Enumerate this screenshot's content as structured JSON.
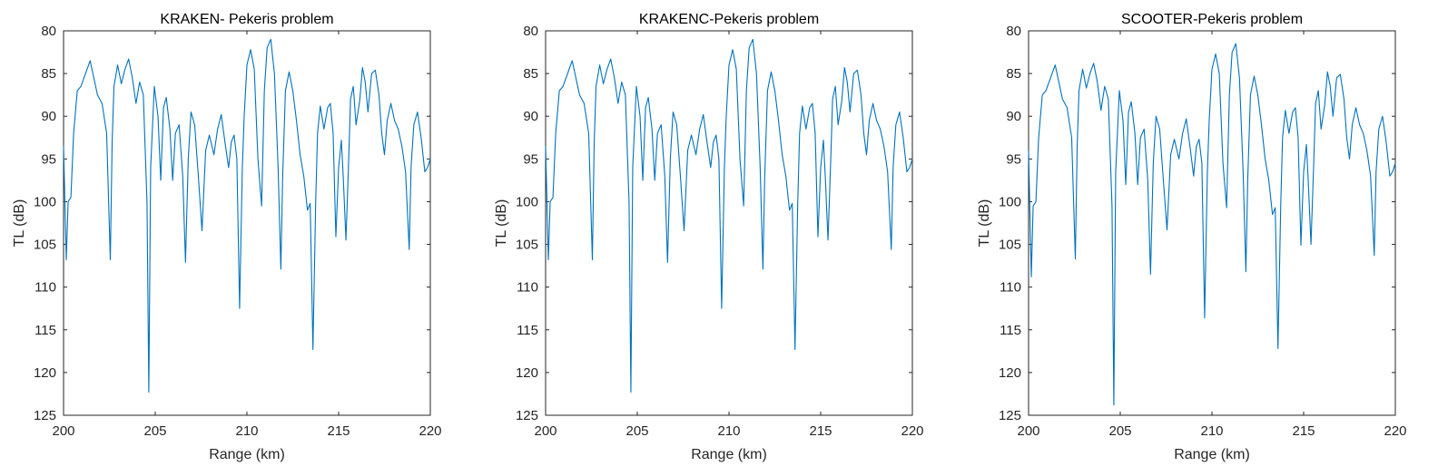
{
  "figure": {
    "line_color": "#0072BD",
    "axis_color": "#262626"
  },
  "chart_data": [
    {
      "type": "line",
      "title": "KRAKEN- Pekeris problem",
      "xlabel": "Range (km)",
      "ylabel": "TL (dB)",
      "xlim": [
        200,
        220
      ],
      "ylim": [
        80,
        125
      ],
      "y_reversed": true,
      "xticks": [
        200,
        205,
        210,
        215,
        220
      ],
      "yticks": [
        80,
        85,
        90,
        95,
        100,
        105,
        110,
        115,
        120,
        125
      ],
      "series": [
        {
          "name": "TL",
          "x": [
            200.0,
            200.15,
            200.25,
            200.4,
            200.55,
            200.75,
            200.95,
            201.2,
            201.45,
            201.65,
            201.85,
            202.1,
            202.35,
            202.55,
            202.65,
            202.75,
            202.95,
            203.15,
            203.35,
            203.55,
            203.75,
            203.95,
            204.15,
            204.35,
            204.55,
            204.65,
            204.75,
            204.95,
            205.15,
            205.3,
            205.45,
            205.6,
            205.8,
            205.95,
            206.1,
            206.3,
            206.5,
            206.65,
            206.8,
            206.95,
            207.15,
            207.35,
            207.55,
            207.75,
            207.95,
            208.2,
            208.4,
            208.6,
            208.8,
            209.0,
            209.15,
            209.3,
            209.45,
            209.6,
            209.75,
            209.85,
            210.0,
            210.2,
            210.4,
            210.6,
            210.8,
            210.95,
            211.1,
            211.3,
            211.5,
            211.7,
            211.85,
            211.95,
            212.1,
            212.3,
            212.5,
            212.7,
            212.9,
            213.1,
            213.3,
            213.45,
            213.6,
            213.75,
            213.85,
            214.0,
            214.2,
            214.4,
            214.55,
            214.7,
            214.85,
            215.0,
            215.15,
            215.25,
            215.4,
            215.55,
            215.65,
            215.8,
            215.95,
            216.15,
            216.3,
            216.45,
            216.6,
            216.8,
            217.0,
            217.2,
            217.35,
            217.5,
            217.65,
            217.85,
            218.05,
            218.25,
            218.45,
            218.65,
            218.85,
            218.95,
            219.1,
            219.3,
            219.5,
            219.7,
            219.85,
            220.0
          ],
          "values": [
            93.5,
            106.8,
            100.0,
            99.5,
            92.0,
            87.0,
            86.5,
            85.0,
            83.5,
            85.5,
            87.5,
            88.5,
            92.0,
            106.8,
            93.0,
            86.5,
            84.0,
            86.2,
            84.5,
            83.3,
            85.5,
            88.5,
            86.0,
            87.5,
            100.0,
            122.3,
            96.0,
            86.5,
            90.0,
            97.5,
            89.0,
            87.8,
            91.5,
            97.5,
            92.0,
            91.0,
            97.0,
            107.1,
            95.0,
            89.5,
            91.0,
            97.0,
            103.4,
            94.0,
            92.2,
            94.5,
            91.5,
            89.8,
            93.0,
            96.0,
            93.0,
            92.2,
            95.0,
            112.5,
            96.0,
            90.0,
            84.0,
            82.2,
            84.5,
            95.0,
            100.5,
            87.0,
            82.0,
            81.0,
            85.0,
            96.0,
            107.9,
            97.0,
            87.0,
            84.8,
            87.0,
            90.5,
            94.5,
            97.0,
            101.0,
            100.2,
            117.3,
            100.0,
            92.0,
            88.8,
            91.5,
            89.0,
            88.5,
            92.0,
            104.1,
            96.0,
            92.8,
            97.0,
            104.5,
            95.0,
            88.0,
            86.5,
            91.0,
            88.2,
            84.3,
            86.0,
            89.5,
            85.0,
            84.6,
            87.5,
            92.0,
            94.5,
            90.5,
            88.5,
            90.5,
            91.5,
            93.5,
            96.5,
            105.6,
            96.0,
            91.0,
            89.5,
            92.5,
            96.5,
            96.0,
            95.0
          ]
        }
      ]
    },
    {
      "type": "line",
      "title": "KRAKENC-Pekeris problem",
      "xlabel": "Range (km)",
      "ylabel": "TL (dB)",
      "xlim": [
        200,
        220
      ],
      "ylim": [
        80,
        125
      ],
      "y_reversed": true,
      "xticks": [
        200,
        205,
        210,
        215,
        220
      ],
      "yticks": [
        80,
        85,
        90,
        95,
        100,
        105,
        110,
        115,
        120,
        125
      ],
      "series": [
        {
          "name": "TL",
          "x": [
            200.0,
            200.15,
            200.25,
            200.4,
            200.55,
            200.75,
            200.95,
            201.2,
            201.45,
            201.65,
            201.85,
            202.1,
            202.35,
            202.55,
            202.65,
            202.75,
            202.95,
            203.15,
            203.35,
            203.55,
            203.75,
            203.95,
            204.15,
            204.35,
            204.55,
            204.65,
            204.75,
            204.95,
            205.15,
            205.3,
            205.45,
            205.6,
            205.8,
            205.95,
            206.1,
            206.3,
            206.5,
            206.65,
            206.8,
            206.95,
            207.15,
            207.35,
            207.55,
            207.75,
            207.95,
            208.2,
            208.4,
            208.6,
            208.8,
            209.0,
            209.15,
            209.3,
            209.45,
            209.6,
            209.75,
            209.85,
            210.0,
            210.2,
            210.4,
            210.6,
            210.8,
            210.95,
            211.1,
            211.3,
            211.5,
            211.7,
            211.85,
            211.95,
            212.1,
            212.3,
            212.5,
            212.7,
            212.9,
            213.1,
            213.3,
            213.45,
            213.6,
            213.75,
            213.85,
            214.0,
            214.2,
            214.4,
            214.55,
            214.7,
            214.85,
            215.0,
            215.15,
            215.25,
            215.4,
            215.55,
            215.65,
            215.8,
            215.95,
            216.15,
            216.3,
            216.45,
            216.6,
            216.8,
            217.0,
            217.2,
            217.35,
            217.5,
            217.65,
            217.85,
            218.05,
            218.25,
            218.45,
            218.65,
            218.85,
            218.95,
            219.1,
            219.3,
            219.5,
            219.7,
            219.85,
            220.0
          ],
          "values": [
            93.5,
            106.8,
            100.0,
            99.5,
            92.0,
            87.0,
            86.5,
            85.0,
            83.5,
            85.5,
            87.5,
            88.5,
            92.0,
            106.8,
            93.0,
            86.5,
            84.0,
            86.2,
            84.5,
            83.3,
            85.5,
            88.5,
            86.0,
            87.5,
            100.0,
            122.3,
            96.0,
            86.5,
            90.0,
            97.5,
            89.0,
            87.8,
            91.5,
            97.5,
            92.0,
            91.0,
            97.0,
            107.1,
            95.0,
            89.5,
            91.0,
            97.0,
            103.4,
            94.0,
            92.2,
            94.5,
            91.5,
            89.8,
            93.0,
            96.0,
            93.0,
            92.2,
            95.0,
            112.5,
            96.0,
            90.0,
            84.0,
            82.2,
            84.5,
            95.0,
            100.5,
            87.0,
            82.0,
            81.0,
            85.0,
            96.0,
            107.9,
            97.0,
            87.0,
            84.8,
            87.0,
            90.5,
            94.5,
            97.0,
            101.0,
            100.2,
            117.3,
            100.0,
            92.0,
            88.8,
            91.5,
            89.0,
            88.5,
            92.0,
            104.1,
            96.0,
            92.8,
            97.0,
            104.5,
            95.0,
            88.0,
            86.5,
            91.0,
            88.2,
            84.3,
            86.0,
            89.5,
            85.0,
            84.6,
            87.5,
            92.0,
            94.5,
            90.5,
            88.5,
            90.5,
            91.5,
            93.5,
            96.5,
            105.6,
            96.0,
            91.0,
            89.5,
            92.5,
            96.5,
            96.0,
            95.0
          ]
        }
      ]
    },
    {
      "type": "line",
      "title": "SCOOTER-Pekeris problem",
      "xlabel": "Range (km)",
      "ylabel": "TL (dB)",
      "xlim": [
        200,
        220
      ],
      "ylim": [
        80,
        125
      ],
      "y_reversed": true,
      "xticks": [
        200,
        205,
        210,
        215,
        220
      ],
      "yticks": [
        80,
        85,
        90,
        95,
        100,
        105,
        110,
        115,
        120,
        125
      ],
      "series": [
        {
          "name": "TL",
          "x": [
            200.0,
            200.15,
            200.25,
            200.4,
            200.55,
            200.75,
            200.95,
            201.2,
            201.45,
            201.65,
            201.85,
            202.1,
            202.35,
            202.55,
            202.65,
            202.75,
            202.95,
            203.15,
            203.35,
            203.55,
            203.75,
            203.95,
            204.15,
            204.35,
            204.55,
            204.65,
            204.75,
            204.95,
            205.15,
            205.3,
            205.45,
            205.6,
            205.8,
            205.95,
            206.1,
            206.3,
            206.5,
            206.65,
            206.8,
            206.95,
            207.15,
            207.35,
            207.55,
            207.75,
            207.95,
            208.2,
            208.4,
            208.6,
            208.8,
            209.0,
            209.15,
            209.3,
            209.45,
            209.6,
            209.75,
            209.85,
            210.0,
            210.2,
            210.4,
            210.6,
            210.8,
            210.95,
            211.1,
            211.3,
            211.5,
            211.7,
            211.85,
            211.95,
            212.1,
            212.3,
            212.5,
            212.7,
            212.9,
            213.1,
            213.3,
            213.45,
            213.6,
            213.75,
            213.85,
            214.0,
            214.2,
            214.4,
            214.55,
            214.7,
            214.85,
            215.0,
            215.15,
            215.25,
            215.4,
            215.55,
            215.65,
            215.8,
            215.95,
            216.15,
            216.3,
            216.45,
            216.6,
            216.8,
            217.0,
            217.2,
            217.35,
            217.5,
            217.65,
            217.85,
            218.05,
            218.25,
            218.45,
            218.65,
            218.85,
            218.95,
            219.1,
            219.3,
            219.5,
            219.7,
            219.85,
            220.0
          ],
          "values": [
            94.0,
            108.8,
            100.5,
            100.0,
            92.5,
            87.5,
            87.0,
            85.5,
            84.0,
            86.0,
            88.0,
            89.0,
            92.5,
            106.7,
            93.5,
            87.0,
            84.5,
            86.7,
            85.0,
            83.8,
            86.0,
            89.3,
            86.5,
            88.0,
            100.5,
            123.8,
            96.5,
            87.0,
            90.5,
            98.0,
            89.5,
            88.3,
            92.0,
            98.0,
            92.5,
            91.5,
            97.5,
            108.5,
            95.5,
            90.0,
            91.5,
            97.5,
            103.3,
            94.5,
            92.7,
            95.0,
            92.0,
            90.3,
            93.5,
            97.0,
            93.5,
            92.7,
            95.5,
            113.6,
            96.5,
            90.5,
            84.5,
            82.7,
            85.0,
            95.5,
            100.7,
            87.5,
            82.5,
            81.5,
            85.5,
            96.5,
            108.2,
            97.5,
            87.5,
            85.3,
            87.5,
            91.0,
            95.0,
            97.5,
            101.5,
            100.7,
            117.2,
            100.5,
            92.5,
            89.3,
            92.0,
            89.5,
            89.0,
            92.5,
            105.1,
            96.5,
            93.3,
            97.5,
            105.0,
            95.5,
            88.5,
            87.0,
            91.5,
            88.7,
            84.8,
            86.5,
            90.0,
            85.5,
            85.1,
            88.0,
            92.5,
            95.0,
            91.0,
            89.0,
            91.0,
            92.0,
            94.0,
            97.0,
            106.3,
            96.5,
            91.5,
            90.0,
            93.0,
            97.0,
            96.5,
            95.5
          ]
        }
      ]
    }
  ]
}
